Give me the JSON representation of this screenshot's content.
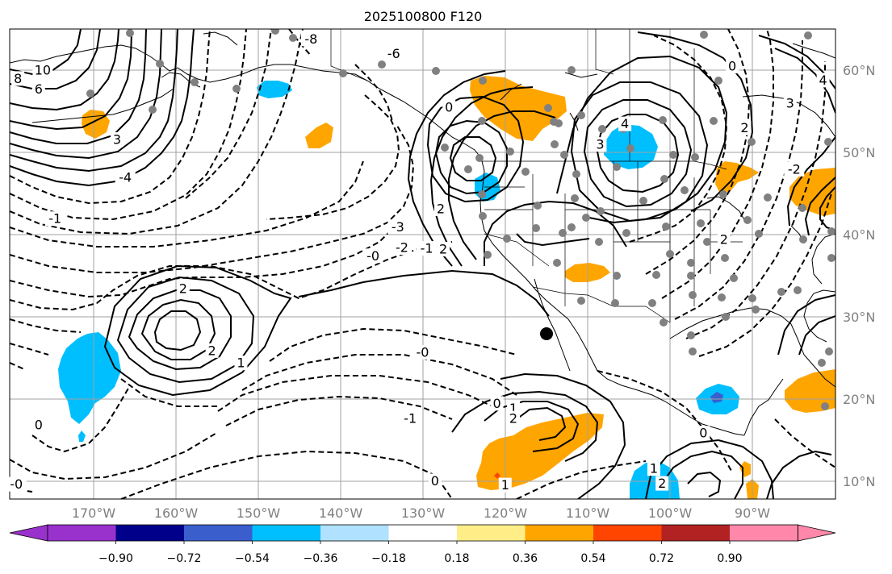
{
  "title": "2025100800 F120",
  "map": {
    "lon_ticks": [
      "170°W",
      "160°W",
      "150°W",
      "140°W",
      "130°W",
      "120°W",
      "110°W",
      "100°W",
      "90°W"
    ],
    "lat_ticks": [
      "60°N",
      "50°N",
      "40°N",
      "30°N",
      "20°N",
      "10°N"
    ],
    "lon_range": [
      -180,
      -80
    ],
    "lat_range": [
      8,
      65
    ],
    "contour_style": {
      "positive": "solid",
      "negative": "dashed",
      "color": "#000000"
    },
    "contour_labels": [
      {
        "text": "10",
        "lon": -176,
        "lat": 60.0
      },
      {
        "text": "8",
        "lon": -179,
        "lat": 59.0
      },
      {
        "text": "6",
        "lon": -176.5,
        "lat": 57.7
      },
      {
        "text": "3",
        "lon": -167,
        "lat": 51.6
      },
      {
        "text": "-8",
        "lon": -143.5,
        "lat": 63.8
      },
      {
        "text": "-6",
        "lon": -133.5,
        "lat": 62.0
      },
      {
        "text": "-4",
        "lon": -166,
        "lat": 47.0
      },
      {
        "text": "-1",
        "lon": -174.5,
        "lat": 42.0
      },
      {
        "text": "-3",
        "lon": -133,
        "lat": 41.0
      },
      {
        "text": "-2",
        "lon": -132.5,
        "lat": 38.5
      },
      {
        "text": "-1",
        "lon": -129.5,
        "lat": 38.4
      },
      {
        "text": "-0",
        "lon": -136,
        "lat": 37.5
      },
      {
        "text": "2",
        "lon": -159,
        "lat": 33.5
      },
      {
        "text": "2",
        "lon": -155.5,
        "lat": 26.0
      },
      {
        "text": "1",
        "lon": -152,
        "lat": 24.5
      },
      {
        "text": "-0",
        "lon": -130,
        "lat": 25.8
      },
      {
        "text": "-1",
        "lon": -131.5,
        "lat": 17.8
      },
      {
        "text": "2",
        "lon": -127.8,
        "lat": 43.2
      },
      {
        "text": "2",
        "lon": -127.5,
        "lat": 38.3
      },
      {
        "text": "0",
        "lon": -126.8,
        "lat": 55.5
      },
      {
        "text": "4",
        "lon": -105.5,
        "lat": 53.5
      },
      {
        "text": "3",
        "lon": -108.5,
        "lat": 51.0
      },
      {
        "text": "0",
        "lon": -92.5,
        "lat": 60.5
      },
      {
        "text": "4",
        "lon": -81.5,
        "lat": 58.8
      },
      {
        "text": "3",
        "lon": -85.5,
        "lat": 56.0
      },
      {
        "text": "2",
        "lon": -91,
        "lat": 53.0
      },
      {
        "text": "-2",
        "lon": -85,
        "lat": 48.0
      },
      {
        "text": "2",
        "lon": -93.5,
        "lat": 39.5
      },
      {
        "text": "0",
        "lon": -121,
        "lat": 19.6
      },
      {
        "text": "1",
        "lon": -119,
        "lat": 19.0
      },
      {
        "text": "2",
        "lon": -119,
        "lat": 17.8
      },
      {
        "text": "1",
        "lon": -120,
        "lat": 9.7
      },
      {
        "text": "0",
        "lon": -128.5,
        "lat": 10.2
      },
      {
        "text": "1",
        "lon": -102,
        "lat": 11.7
      },
      {
        "text": "2",
        "lon": -101,
        "lat": 9.9
      },
      {
        "text": "0",
        "lon": -96,
        "lat": 16.0
      },
      {
        "text": "0",
        "lon": -176.5,
        "lat": 17.0
      },
      {
        "text": "-0",
        "lon": -179.2,
        "lat": 9.8
      }
    ]
  },
  "colorbar": {
    "ticks": [
      "−0.90",
      "−0.72",
      "−0.54",
      "−0.36",
      "−0.18",
      "0.18",
      "0.36",
      "0.54",
      "0.72",
      "0.90"
    ],
    "under_color": "#9932CC",
    "over_color": "#FF88AA",
    "colors": [
      "#00008B",
      "#3A5FCD",
      "#00BFFF",
      "#B0E2FF",
      "#FFFFFF",
      "#FFEE88",
      "#FFA500",
      "#FF4500",
      "#B22222"
    ]
  }
}
